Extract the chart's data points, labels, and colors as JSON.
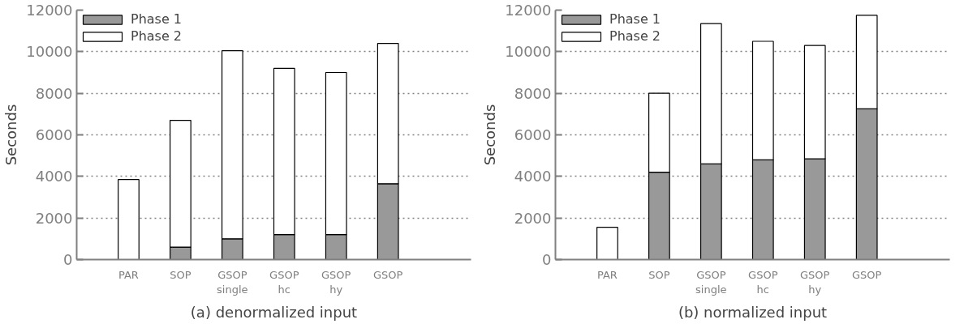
{
  "chart_data": [
    {
      "type": "bar",
      "title": "(a) denormalized input",
      "ylabel": "Seconds",
      "categories": [
        "PAR",
        "SOP",
        "GSOP\nsingle",
        "GSOP\nhc",
        "GSOP\nhy",
        "GSOP"
      ],
      "stacked": true,
      "series": [
        {
          "name": "Phase 1",
          "color": "#999999",
          "values": [
            0,
            600,
            1000,
            1200,
            1200,
            3650
          ]
        },
        {
          "name": "Phase 2",
          "color": "#ffffff",
          "values": [
            3850,
            6100,
            9050,
            8000,
            7800,
            6750
          ]
        }
      ],
      "ylim": [
        0,
        12000
      ],
      "yticks": [
        0,
        2000,
        4000,
        6000,
        8000,
        10000,
        12000
      ],
      "grid": "y",
      "legend": "top left"
    },
    {
      "type": "bar",
      "title": "(b) normalized input",
      "ylabel": "Seconds",
      "categories": [
        "PAR",
        "SOP",
        "GSOP\nsingle",
        "GSOP\nhc",
        "GSOP\nhy",
        "GSOP"
      ],
      "stacked": true,
      "series": [
        {
          "name": "Phase 1",
          "color": "#999999",
          "values": [
            0,
            4200,
            4600,
            4800,
            4850,
            7250
          ]
        },
        {
          "name": "Phase 2",
          "color": "#ffffff",
          "values": [
            1550,
            3800,
            6750,
            5700,
            5450,
            4500
          ]
        }
      ],
      "ylim": [
        0,
        12000
      ],
      "yticks": [
        0,
        2000,
        4000,
        6000,
        8000,
        10000,
        12000
      ],
      "grid": "y",
      "legend": "top left"
    }
  ]
}
